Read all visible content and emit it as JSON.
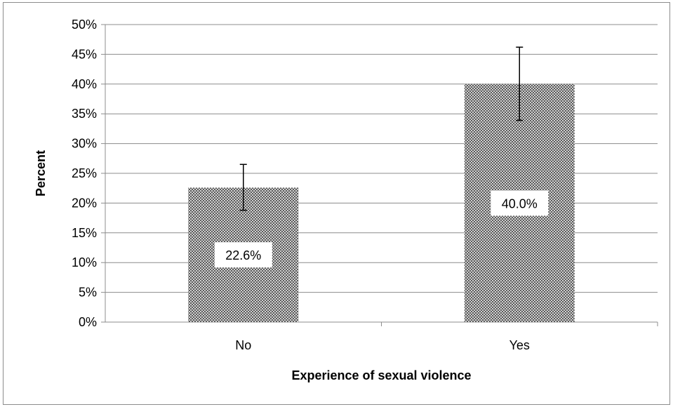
{
  "chart_data": {
    "type": "bar",
    "categories": [
      "No",
      "Yes"
    ],
    "values": [
      22.6,
      40.0
    ],
    "error_bars": [
      {
        "low": 18.8,
        "high": 26.5
      },
      {
        "low": 33.9,
        "high": 46.2
      }
    ],
    "data_labels": [
      "22.6%",
      "40.0%"
    ],
    "xlabel": "Experience of sexual violence",
    "ylabel": "Percent",
    "ylim": [
      0,
      50
    ],
    "ytick_labels": [
      "0%",
      "5%",
      "10%",
      "15%",
      "20%",
      "25%",
      "30%",
      "35%",
      "40%",
      "45%",
      "50%"
    ],
    "grid": true,
    "legend": false,
    "colors": {
      "bar_pattern_fg": "#4d4d4d",
      "bar_pattern_bg": "#ffffff",
      "grid": "#8c8c8c",
      "axis": "#8c8c8c"
    }
  }
}
